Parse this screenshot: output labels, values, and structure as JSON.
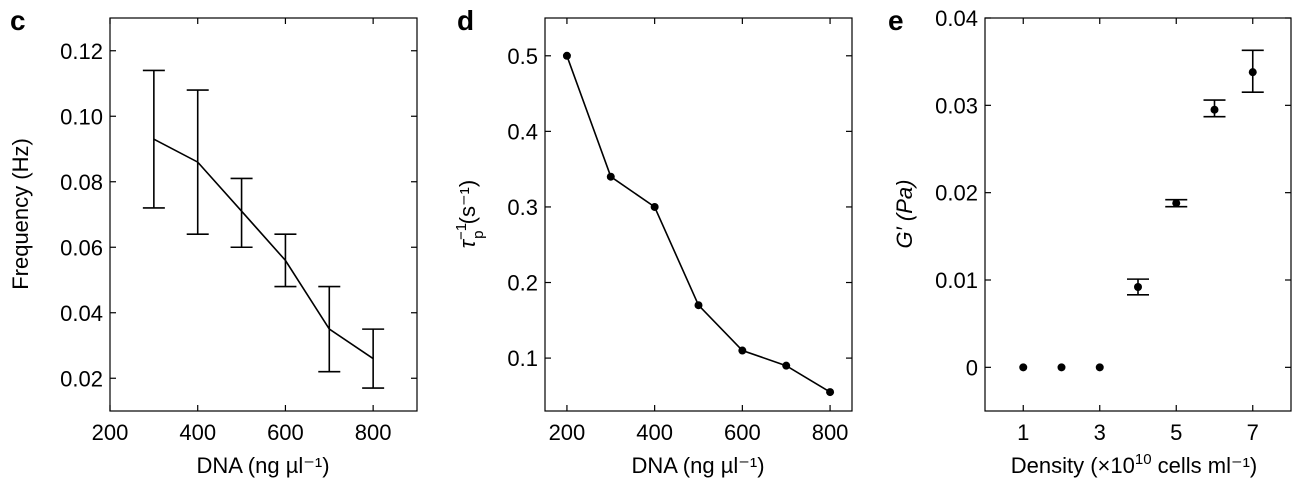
{
  "chart_data": [
    {
      "panel": "c",
      "type": "line",
      "xlabel": "DNA (ng µl⁻¹)",
      "ylabel": "Frequency (Hz)",
      "xlim": [
        200,
        900
      ],
      "ylim": [
        0.01,
        0.13
      ],
      "xticks": [
        "200",
        "400",
        "600",
        "800"
      ],
      "yticks": [
        "0.02",
        "0.04",
        "0.06",
        "0.08",
        "0.10",
        "0.12"
      ],
      "x": [
        300,
        400,
        500,
        600,
        700,
        800
      ],
      "y": [
        0.093,
        0.086,
        0.071,
        0.056,
        0.035,
        0.026
      ],
      "error_low": [
        0.072,
        0.064,
        0.06,
        0.048,
        0.022,
        0.017
      ],
      "error_high": [
        0.114,
        0.108,
        0.081,
        0.064,
        0.048,
        0.035
      ],
      "markers": false,
      "grid": false
    },
    {
      "panel": "d",
      "type": "line",
      "xlabel": "DNA (ng µl⁻¹)",
      "ylabel_main": "τ",
      "ylabel_sup": "−1",
      "ylabel_sub": "p",
      "ylabel_tail": " (s⁻¹)",
      "xlim": [
        150,
        850
      ],
      "ylim": [
        0.03,
        0.55
      ],
      "xticks": [
        "200",
        "400",
        "600",
        "800"
      ],
      "yticks": [
        "0.1",
        "0.2",
        "0.3",
        "0.4",
        "0.5"
      ],
      "x": [
        200,
        300,
        400,
        500,
        600,
        700,
        800
      ],
      "y": [
        0.5,
        0.34,
        0.3,
        0.17,
        0.11,
        0.09,
        0.055
      ],
      "markers": true,
      "grid": false
    },
    {
      "panel": "e",
      "type": "scatter",
      "xlabel_pre": "Density (×10",
      "xlabel_sup": "10",
      "xlabel_post": " cells ml⁻¹)",
      "ylabel": "G′ (Pa)",
      "xlim": [
        0,
        8
      ],
      "ylim": [
        -0.005,
        0.04
      ],
      "xticks": [
        "1",
        "3",
        "5",
        "7"
      ],
      "yticks": [
        "0",
        "0.01",
        "0.02",
        "0.03",
        "0.04"
      ],
      "x": [
        1,
        2,
        3,
        4,
        5,
        6,
        7
      ],
      "y": [
        0,
        0,
        0,
        0.0092,
        0.0188,
        0.0295,
        0.0338
      ],
      "error_low": [
        null,
        null,
        null,
        0.0083,
        0.0184,
        0.0287,
        0.0315
      ],
      "error_high": [
        null,
        null,
        null,
        0.0101,
        0.0192,
        0.0306,
        0.0363
      ],
      "grid": false
    }
  ]
}
